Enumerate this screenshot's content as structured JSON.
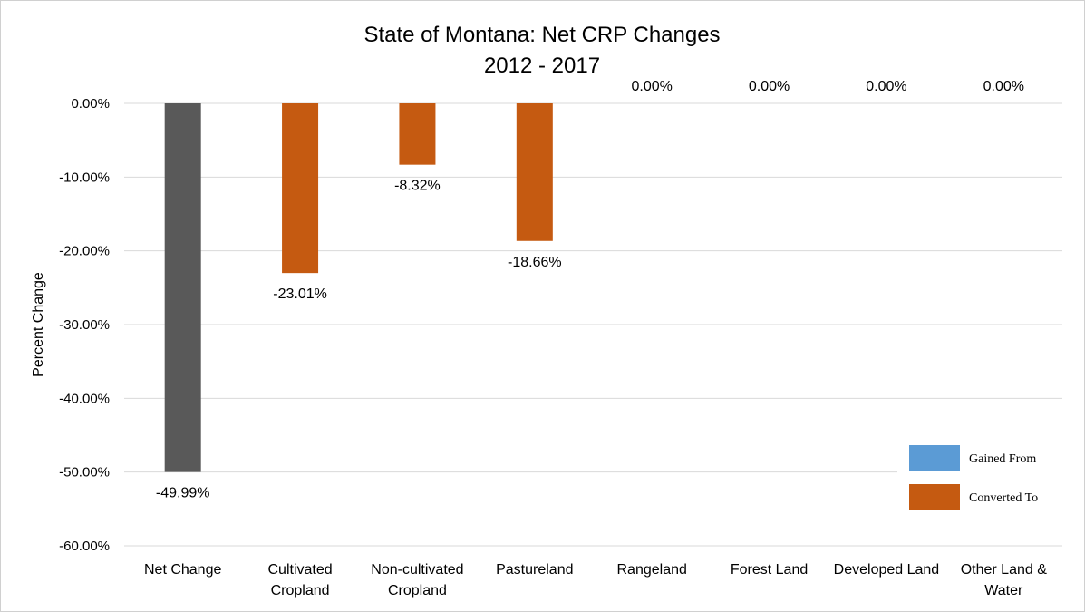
{
  "chart_data": {
    "type": "bar",
    "title": [
      "State of Montana: Net CRP Changes",
      "2012 - 2017"
    ],
    "ylabel": "Percent Change",
    "xlabel": "",
    "ylim": [
      -60,
      0
    ],
    "yticks": [
      0,
      -10,
      -20,
      -30,
      -40,
      -50,
      -60
    ],
    "ytick_labels": [
      "0.00%",
      "-10.00%",
      "-20.00%",
      "-30.00%",
      "-40.00%",
      "-50.00%",
      "-60.00%"
    ],
    "grid": true,
    "categories": [
      [
        "Net Change"
      ],
      [
        "Cultivated",
        "Cropland"
      ],
      [
        "Non-cultivated",
        "Cropland"
      ],
      [
        "Pastureland"
      ],
      [
        "Rangeland"
      ],
      [
        "Forest Land"
      ],
      [
        "Developed Land"
      ],
      [
        "Other Land &",
        "Water"
      ]
    ],
    "values": [
      -49.99,
      -23.01,
      -8.32,
      -18.66,
      0.0,
      0.0,
      0.0,
      0.0
    ],
    "data_labels": [
      "-49.99%",
      "-23.01%",
      "-8.32%",
      "-18.66%",
      "0.00%",
      "0.00%",
      "0.00%",
      "0.00%"
    ],
    "bar_series": [
      "net",
      "converted",
      "converted",
      "converted",
      "converted",
      "converted",
      "converted",
      "converted"
    ],
    "legend": {
      "placement": "bottom-right",
      "entries": [
        {
          "name": "Gained From",
          "color": "#5b9bd5"
        },
        {
          "name": "Converted To",
          "color": "#c55a11"
        }
      ]
    },
    "colors": {
      "net": "#595959",
      "converted": "#c55a11",
      "gained": "#5b9bd5"
    }
  }
}
